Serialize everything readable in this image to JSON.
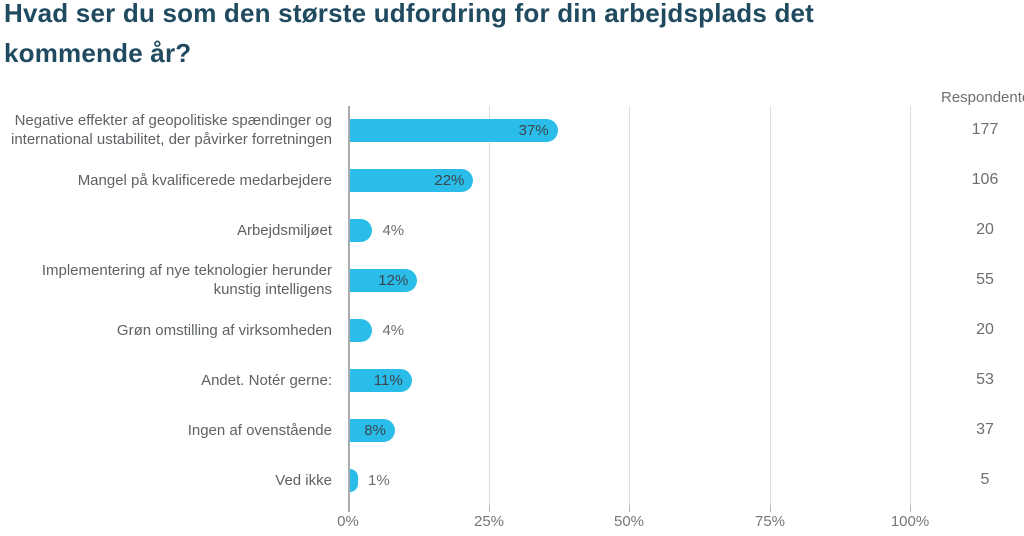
{
  "title": "Hvad ser du som den største udfordring for din arbejdsplads det kommende år?",
  "respondents_header": "Respondenter",
  "colors": {
    "title": "#1F4A5F",
    "bar": "#2ABDE9",
    "category_label": "#5E6265",
    "value_label_inside": "#3A464E",
    "value_label_outside": "#6A6E71",
    "axis_label": "#73777A",
    "gridline": "#DCDDDE",
    "axis_line": "#A9ACAE",
    "respondents": "#6B6F73"
  },
  "chart_data": {
    "type": "bar",
    "orientation": "horizontal",
    "title": "Hvad ser du som den største udfordring for din arbejdsplads det kommende år?",
    "categories": [
      "Negative effekter af geopolitiske spændinger og\ninternational ustabilitet, der påvirker forretningen",
      "Mangel på kvalificerede medarbejdere",
      "Arbejdsmiljøet",
      "Implementering af nye teknologier herunder\nkunstig intelligens",
      "Grøn omstilling af virksomheden",
      "Andet. Notér gerne:",
      "Ingen af ovenstående",
      "Ved ikke"
    ],
    "values": [
      37,
      22,
      4,
      12,
      4,
      11,
      8,
      1
    ],
    "value_labels": [
      "37%",
      "22%",
      "4%",
      "12%",
      "4%",
      "11%",
      "8%",
      "1%"
    ],
    "respondents": [
      177,
      106,
      20,
      55,
      20,
      53,
      37,
      5
    ],
    "respondents_header": "Respondenter",
    "value_suffix": "%",
    "xlim": [
      0,
      100
    ],
    "x_tick_labels": [
      "0%",
      "25%",
      "50%",
      "75%",
      "100%"
    ],
    "grid": "vertical-gridlines",
    "legend": null,
    "xlabel": "",
    "ylabel": ""
  }
}
